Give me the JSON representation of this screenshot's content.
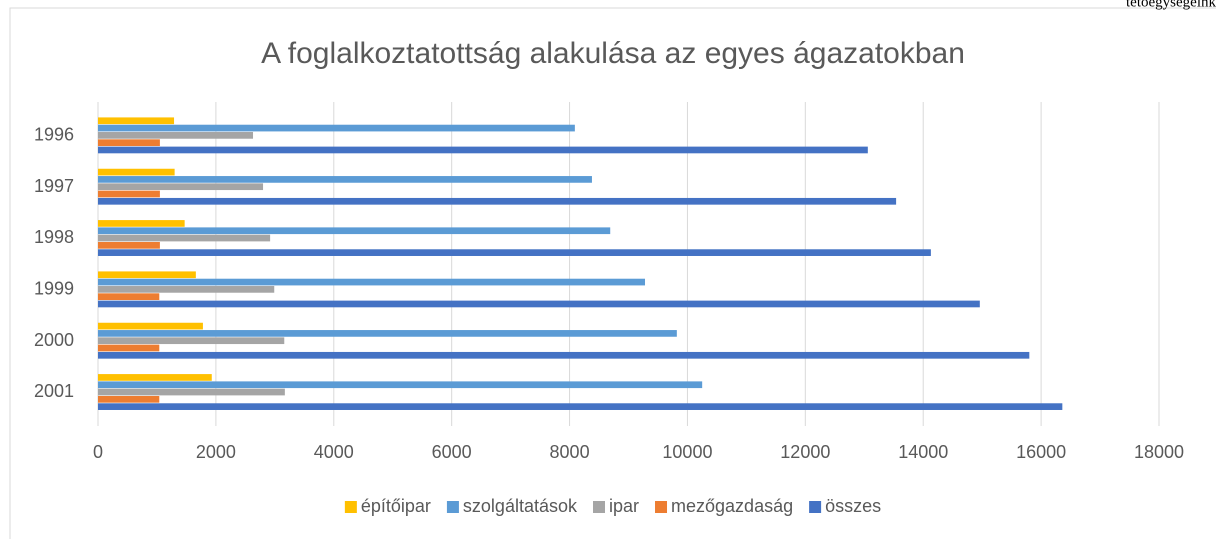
{
  "header_text": "tetőegységeink",
  "chart_data": {
    "type": "hbar",
    "title": "A foglalkoztatottság alakulása az egyes ágazatokban",
    "categories": [
      "1996",
      "1997",
      "1998",
      "1999",
      "2000",
      "2001"
    ],
    "series": [
      {
        "name": "építőipar",
        "color": "#ffc000",
        "values": [
          1290,
          1300,
          1470,
          1660,
          1780,
          1930
        ]
      },
      {
        "name": "szolgáltatások",
        "color": "#5b9bd5",
        "values": [
          8090,
          8380,
          8690,
          9280,
          9820,
          10250
        ]
      },
      {
        "name": "ipar",
        "color": "#a5a5a5",
        "values": [
          2630,
          2800,
          2920,
          2990,
          3160,
          3170
        ]
      },
      {
        "name": "mezőgazdaság",
        "color": "#ed7d31",
        "values": [
          1050,
          1050,
          1050,
          1040,
          1040,
          1040
        ]
      },
      {
        "name": "összes",
        "color": "#4472c4",
        "values": [
          13060,
          13540,
          14130,
          14960,
          15800,
          16360
        ]
      }
    ],
    "xlim": [
      0,
      18000
    ],
    "xticks": [
      0,
      2000,
      4000,
      6000,
      8000,
      10000,
      12000,
      14000,
      16000,
      18000
    ],
    "grid": true,
    "legend": "bottom"
  }
}
